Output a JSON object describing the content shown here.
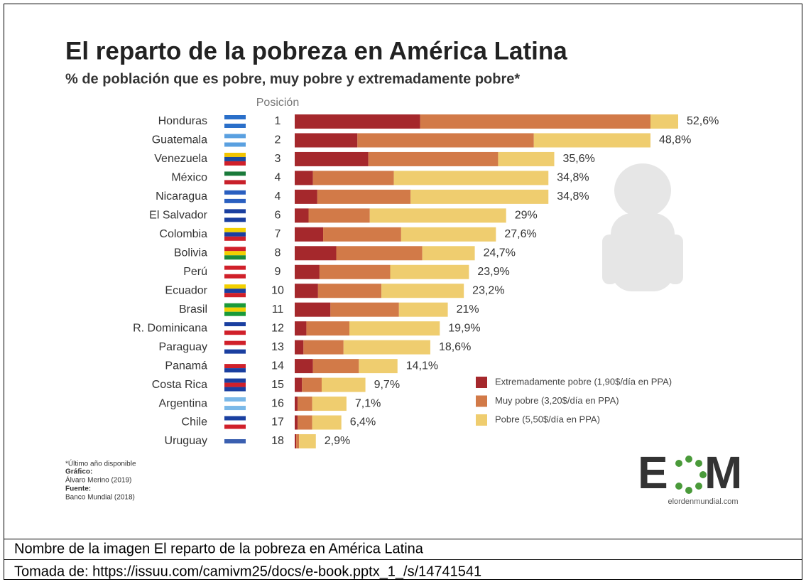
{
  "chart_data": {
    "type": "bar",
    "orientation": "horizontal",
    "stacked": true,
    "title": "El reparto de la pobreza en América Latina",
    "subtitle": "% de población que es pobre, muy pobre y extremadamente pobre*",
    "position_label": "Posición",
    "categories": [
      "Honduras",
      "Guatemala",
      "Venezuela",
      "México",
      "Nicaragua",
      "El Salvador",
      "Colombia",
      "Bolivia",
      "Perú",
      "Ecuador",
      "Brasil",
      "R. Dominicana",
      "Paraguay",
      "Panamá",
      "Costa Rica",
      "Argentina",
      "Chile",
      "Uruguay"
    ],
    "positions": [
      1,
      2,
      3,
      4,
      4,
      6,
      7,
      8,
      9,
      10,
      11,
      12,
      13,
      14,
      15,
      16,
      17,
      18
    ],
    "series": [
      {
        "name": "Extremadamente pobre (1,90$/día en PPA)",
        "color": "#a5282c",
        "values": [
          17.2,
          8.6,
          10.1,
          2.5,
          3.1,
          1.9,
          3.9,
          5.7,
          3.4,
          3.2,
          4.9,
          1.6,
          1.2,
          2.5,
          1.0,
          0.4,
          0.4,
          0.2
        ]
      },
      {
        "name": "Muy pobre (3,20$/día en PPA)",
        "color": "#d27a48",
        "values": [
          31.6,
          24.2,
          17.8,
          11.1,
          12.8,
          8.4,
          10.7,
          11.8,
          9.7,
          8.7,
          9.4,
          5.9,
          5.5,
          6.3,
          2.7,
          2.0,
          2.0,
          0.4
        ]
      },
      {
        "name": "Pobre (5,50$/día en PPA)",
        "color": "#efcd6f",
        "values": [
          3.8,
          16.0,
          7.7,
          21.2,
          18.9,
          18.7,
          13.0,
          7.2,
          10.8,
          11.3,
          6.7,
          12.4,
          11.9,
          5.3,
          6.0,
          4.7,
          4.0,
          2.3
        ]
      }
    ],
    "totals": [
      52.6,
      48.8,
      35.6,
      34.8,
      34.8,
      29,
      27.6,
      24.7,
      23.9,
      23.2,
      21,
      19.9,
      18.6,
      14.1,
      9.7,
      7.1,
      6.4,
      2.9
    ],
    "total_labels": [
      "52,6%",
      "48,8%",
      "35,6%",
      "34,8%",
      "34,8%",
      "29%",
      "27,6%",
      "24,7%",
      "23,9%",
      "23,2%",
      "21%",
      "19,9%",
      "18,6%",
      "14,1%",
      "9,7%",
      "7,1%",
      "6,4%",
      "2,9%"
    ],
    "notes": [
      "*Último año disponible",
      "Gráfico:",
      "Álvaro Merino (2019)",
      "Fuente:",
      "Banco Mundial (2018)"
    ],
    "logo": {
      "left": "E",
      "right": "M",
      "site": "elordenmundial.com"
    }
  },
  "caption": {
    "image_name": "Nombre de la imagen El reparto de la pobreza en América Latina",
    "source": "Tomada de: https://issuu.com/camivm25/docs/e-book.pptx_1_/s/14741541"
  }
}
